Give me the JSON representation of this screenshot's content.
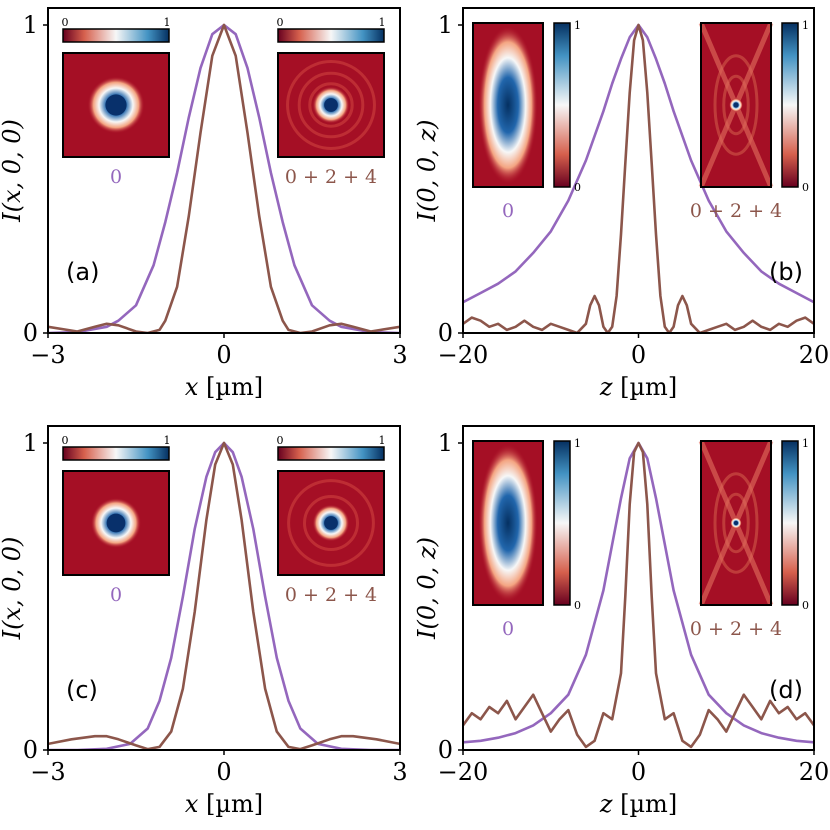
{
  "colors": {
    "series_0": "#9467bd",
    "series_024": "#8c564b",
    "cmap_low": "#67001f",
    "cmap_mid": "#f7f7f7",
    "cmap_high": "#053061"
  },
  "chart_data": [
    {
      "id": "a",
      "type": "line",
      "panel_label": "(a)",
      "xlabel_var": "x",
      "xlabel_unit": " [µm]",
      "ylabel_text": "I(x, 0, 0)",
      "xlim": [
        -3,
        3
      ],
      "ylim": [
        0,
        1
      ],
      "xticks": [
        {
          "v": -3,
          "t": "−3"
        },
        {
          "v": 0,
          "t": "0"
        },
        {
          "v": 3,
          "t": "3"
        }
      ],
      "yticks": [
        {
          "v": 0,
          "t": "0"
        },
        {
          "v": 1,
          "t": "1"
        }
      ],
      "series": [
        {
          "name": "0",
          "color": "#9467bd",
          "x": [
            -3,
            -2.5,
            -2,
            -1.8,
            -1.5,
            -1.2,
            -1,
            -0.8,
            -0.6,
            -0.4,
            -0.2,
            0,
            0.2,
            0.4,
            0.6,
            0.8,
            1,
            1.2,
            1.5,
            1.8,
            2,
            2.5,
            3
          ],
          "y": [
            0,
            0.003,
            0.02,
            0.04,
            0.09,
            0.22,
            0.36,
            0.52,
            0.7,
            0.86,
            0.97,
            1,
            0.97,
            0.86,
            0.7,
            0.52,
            0.36,
            0.22,
            0.09,
            0.04,
            0.02,
            0.003,
            0
          ]
        },
        {
          "name": "0 + 2 + 4",
          "color": "#8c564b",
          "x": [
            -3,
            -2.5,
            -2.2,
            -2,
            -1.8,
            -1.5,
            -1.3,
            -1.1,
            -1,
            -0.8,
            -0.6,
            -0.4,
            -0.2,
            0,
            0.2,
            0.4,
            0.6,
            0.8,
            1,
            1.1,
            1.3,
            1.5,
            1.8,
            2,
            2.2,
            2.5,
            3
          ],
          "y": [
            0.02,
            0.005,
            0.02,
            0.03,
            0.025,
            0.005,
            0,
            0.01,
            0.04,
            0.15,
            0.38,
            0.65,
            0.9,
            1,
            0.9,
            0.65,
            0.38,
            0.15,
            0.04,
            0.01,
            0,
            0.005,
            0.025,
            0.03,
            0.02,
            0.005,
            0.02
          ]
        }
      ],
      "insets": [
        {
          "label": "0",
          "color": "#9467bd",
          "kind": "circle",
          "orient": "horizontal",
          "cb_min": "0",
          "cb_max": "1",
          "spot": 0.34,
          "rings": []
        },
        {
          "label": "0 + 2 + 4",
          "color": "#8c564b",
          "kind": "circle",
          "orient": "horizontal",
          "cb_min": "0",
          "cb_max": "1",
          "spot": 0.22,
          "rings": [
            0.4,
            0.6,
            0.82
          ]
        }
      ]
    },
    {
      "id": "b",
      "type": "line",
      "panel_label": "(b)",
      "xlabel_var": "z",
      "xlabel_unit": " [µm]",
      "ylabel_text": "I(0, 0, z)",
      "xlim": [
        -20,
        20
      ],
      "ylim": [
        0,
        1
      ],
      "xticks": [
        {
          "v": -20,
          "t": "−20"
        },
        {
          "v": 0,
          "t": "0"
        },
        {
          "v": 20,
          "t": "20"
        }
      ],
      "yticks": [
        {
          "v": 0,
          "t": "0"
        },
        {
          "v": 1,
          "t": "1"
        }
      ],
      "series": [
        {
          "name": "0",
          "color": "#9467bd",
          "x": [
            -20,
            -18,
            -16,
            -14,
            -12,
            -10,
            -8,
            -6,
            -4,
            -3,
            -2,
            -1,
            0,
            1,
            2,
            3,
            4,
            6,
            8,
            10,
            12,
            14,
            16,
            18,
            20
          ],
          "y": [
            0.1,
            0.13,
            0.16,
            0.2,
            0.26,
            0.33,
            0.43,
            0.56,
            0.72,
            0.81,
            0.89,
            0.96,
            1,
            0.96,
            0.89,
            0.81,
            0.72,
            0.56,
            0.43,
            0.33,
            0.26,
            0.2,
            0.16,
            0.13,
            0.1
          ]
        },
        {
          "name": "0 + 2 + 4",
          "color": "#8c564b",
          "x": [
            -20,
            -19,
            -18,
            -17,
            -16,
            -15,
            -14,
            -13,
            -12,
            -11,
            -10,
            -9,
            -8,
            -7,
            -6,
            -5.5,
            -5,
            -4.5,
            -4,
            -3.5,
            -3,
            -2.5,
            -2,
            -1.5,
            -1,
            -0.5,
            0,
            0.5,
            1,
            1.5,
            2,
            2.5,
            3,
            3.5,
            4,
            4.5,
            5,
            5.5,
            6,
            7,
            8,
            9,
            10,
            11,
            12,
            13,
            14,
            15,
            16,
            17,
            18,
            19,
            20
          ],
          "y": [
            0.03,
            0.05,
            0.04,
            0.02,
            0.03,
            0.01,
            0.02,
            0.04,
            0.02,
            0.01,
            0.03,
            0.02,
            0.01,
            0,
            0.03,
            0.09,
            0.12,
            0.09,
            0.02,
            0,
            0.02,
            0.12,
            0.32,
            0.55,
            0.78,
            0.95,
            1,
            0.95,
            0.78,
            0.55,
            0.32,
            0.12,
            0.02,
            0,
            0.02,
            0.09,
            0.12,
            0.09,
            0.03,
            0,
            0.01,
            0.02,
            0.03,
            0.01,
            0.02,
            0.04,
            0.02,
            0.01,
            0.03,
            0.02,
            0.04,
            0.05,
            0.03
          ]
        }
      ],
      "insets": [
        {
          "label": "0",
          "color": "#9467bd",
          "kind": "ellipse",
          "orient": "vertical",
          "cb_min": "0",
          "cb_max": "1",
          "spot": 0.5,
          "rings": []
        },
        {
          "label": "0 + 2 + 4",
          "color": "#8c564b",
          "kind": "x-pattern",
          "orient": "vertical",
          "cb_min": "0",
          "cb_max": "1",
          "spot": 0.12,
          "rings": [
            0.35,
            0.6
          ]
        }
      ]
    },
    {
      "id": "c",
      "type": "line",
      "panel_label": "(c)",
      "xlabel_var": "x",
      "xlabel_unit": " [µm]",
      "ylabel_text": "I(x, 0, 0)",
      "xlim": [
        -3,
        3
      ],
      "ylim": [
        0,
        1
      ],
      "xticks": [
        {
          "v": -3,
          "t": "−3"
        },
        {
          "v": 0,
          "t": "0"
        },
        {
          "v": 3,
          "t": "3"
        }
      ],
      "yticks": [
        {
          "v": 0,
          "t": "0"
        },
        {
          "v": 1,
          "t": "1"
        }
      ],
      "series": [
        {
          "name": "0",
          "color": "#9467bd",
          "x": [
            -3,
            -2.5,
            -2,
            -1.6,
            -1.3,
            -1.1,
            -0.9,
            -0.7,
            -0.5,
            -0.3,
            -0.15,
            0,
            0.15,
            0.3,
            0.5,
            0.7,
            0.9,
            1.1,
            1.3,
            1.6,
            2,
            2.5,
            3
          ],
          "y": [
            0,
            0,
            0.004,
            0.02,
            0.07,
            0.16,
            0.3,
            0.5,
            0.72,
            0.89,
            0.97,
            1,
            0.97,
            0.89,
            0.72,
            0.5,
            0.3,
            0.16,
            0.07,
            0.02,
            0.004,
            0,
            0
          ]
        },
        {
          "name": "0 + 2 + 4",
          "color": "#8c564b",
          "x": [
            -3,
            -2.6,
            -2.2,
            -2,
            -1.8,
            -1.5,
            -1.3,
            -1.1,
            -0.9,
            -0.7,
            -0.5,
            -0.3,
            -0.15,
            0,
            0.15,
            0.3,
            0.5,
            0.7,
            0.9,
            1.1,
            1.3,
            1.5,
            1.8,
            2,
            2.2,
            2.6,
            3
          ],
          "y": [
            0.02,
            0.035,
            0.045,
            0.045,
            0.035,
            0.015,
            0.003,
            0.01,
            0.06,
            0.2,
            0.45,
            0.75,
            0.93,
            1,
            0.93,
            0.75,
            0.45,
            0.2,
            0.06,
            0.01,
            0.003,
            0.015,
            0.035,
            0.045,
            0.045,
            0.035,
            0.02
          ]
        }
      ],
      "insets": [
        {
          "label": "0",
          "color": "#9467bd",
          "kind": "circle",
          "orient": "horizontal",
          "cb_min": "0",
          "cb_max": "1",
          "spot": 0.3,
          "rings": []
        },
        {
          "label": "0 + 2 + 4",
          "color": "#8c564b",
          "kind": "circle",
          "orient": "horizontal",
          "cb_min": "0",
          "cb_max": "1",
          "spot": 0.22,
          "rings": [
            0.5,
            0.8
          ]
        }
      ]
    },
    {
      "id": "d",
      "type": "line",
      "panel_label": "(d)",
      "xlabel_var": "z",
      "xlabel_unit": " [µm]",
      "ylabel_text": "I(0, 0, z)",
      "xlim": [
        -20,
        20
      ],
      "ylim": [
        0,
        1
      ],
      "xticks": [
        {
          "v": -20,
          "t": "−20"
        },
        {
          "v": 0,
          "t": "0"
        },
        {
          "v": 20,
          "t": "20"
        }
      ],
      "yticks": [
        {
          "v": 0,
          "t": "0"
        },
        {
          "v": 1,
          "t": "1"
        }
      ],
      "series": [
        {
          "name": "0",
          "color": "#9467bd",
          "x": [
            -20,
            -18,
            -16,
            -14,
            -12,
            -10,
            -8,
            -6,
            -4,
            -3,
            -2,
            -1,
            0,
            1,
            2,
            3,
            4,
            6,
            8,
            10,
            12,
            14,
            16,
            18,
            20
          ],
          "y": [
            0.025,
            0.03,
            0.04,
            0.055,
            0.08,
            0.12,
            0.18,
            0.31,
            0.52,
            0.67,
            0.82,
            0.95,
            1,
            0.95,
            0.82,
            0.67,
            0.52,
            0.31,
            0.18,
            0.12,
            0.08,
            0.055,
            0.04,
            0.03,
            0.025
          ]
        },
        {
          "name": "0 + 2 + 4",
          "color": "#8c564b",
          "x": [
            -20,
            -19,
            -18,
            -17,
            -16,
            -15,
            -14,
            -13,
            -12,
            -11,
            -10,
            -9,
            -8,
            -7,
            -6,
            -5,
            -4,
            -3,
            -2,
            -1.5,
            -1,
            -0.5,
            0,
            0.5,
            1,
            1.5,
            2,
            3,
            4,
            5,
            6,
            7,
            8,
            9,
            10,
            11,
            12,
            13,
            14,
            15,
            16,
            17,
            18,
            19,
            20
          ],
          "y": [
            0.08,
            0.12,
            0.1,
            0.14,
            0.12,
            0.16,
            0.1,
            0.14,
            0.18,
            0.12,
            0.06,
            0.1,
            0.13,
            0.05,
            0.01,
            0.03,
            0.12,
            0.1,
            0.25,
            0.5,
            0.8,
            0.97,
            1,
            0.97,
            0.8,
            0.5,
            0.25,
            0.1,
            0.12,
            0.03,
            0.01,
            0.05,
            0.13,
            0.1,
            0.06,
            0.12,
            0.18,
            0.14,
            0.1,
            0.16,
            0.12,
            0.14,
            0.1,
            0.12,
            0.08
          ]
        }
      ],
      "insets": [
        {
          "label": "0",
          "color": "#9467bd",
          "kind": "ellipse",
          "orient": "vertical",
          "cb_min": "0",
          "cb_max": "1",
          "spot": 0.4,
          "rings": []
        },
        {
          "label": "0 + 2 + 4",
          "color": "#8c564b",
          "kind": "x-pattern",
          "orient": "vertical",
          "cb_min": "0",
          "cb_max": "1",
          "spot": 0.1,
          "rings": [
            0.35,
            0.6
          ]
        }
      ]
    }
  ]
}
